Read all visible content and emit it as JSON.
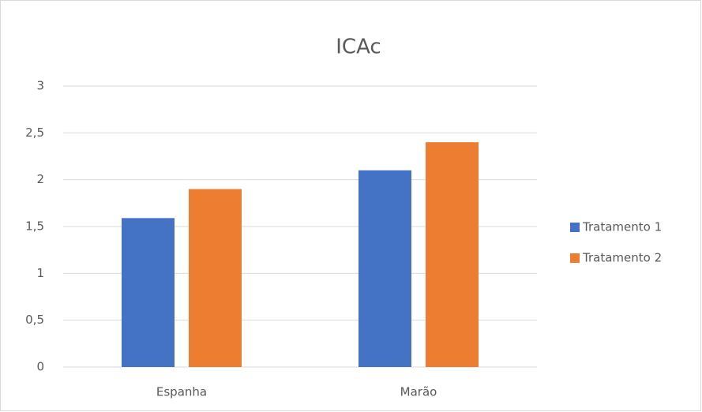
{
  "chart_data": {
    "type": "bar",
    "title": "ICAc",
    "categories": [
      "Espanha",
      "Marão"
    ],
    "series": [
      {
        "name": "Tratamento 1",
        "color": "#4472c4",
        "values": [
          1.59,
          2.1
        ]
      },
      {
        "name": "Tratamento 2",
        "color": "#ed7d31",
        "values": [
          1.9,
          2.4
        ]
      }
    ],
    "ylim": [
      0,
      3
    ],
    "yticks": [
      0,
      {
        "value": 0.5,
        "label": "0,5"
      },
      1,
      {
        "value": 1.5,
        "label": "1,5"
      },
      2,
      {
        "value": 2.5,
        "label": "2,5"
      },
      3
    ],
    "grid": true,
    "legend": "right"
  }
}
